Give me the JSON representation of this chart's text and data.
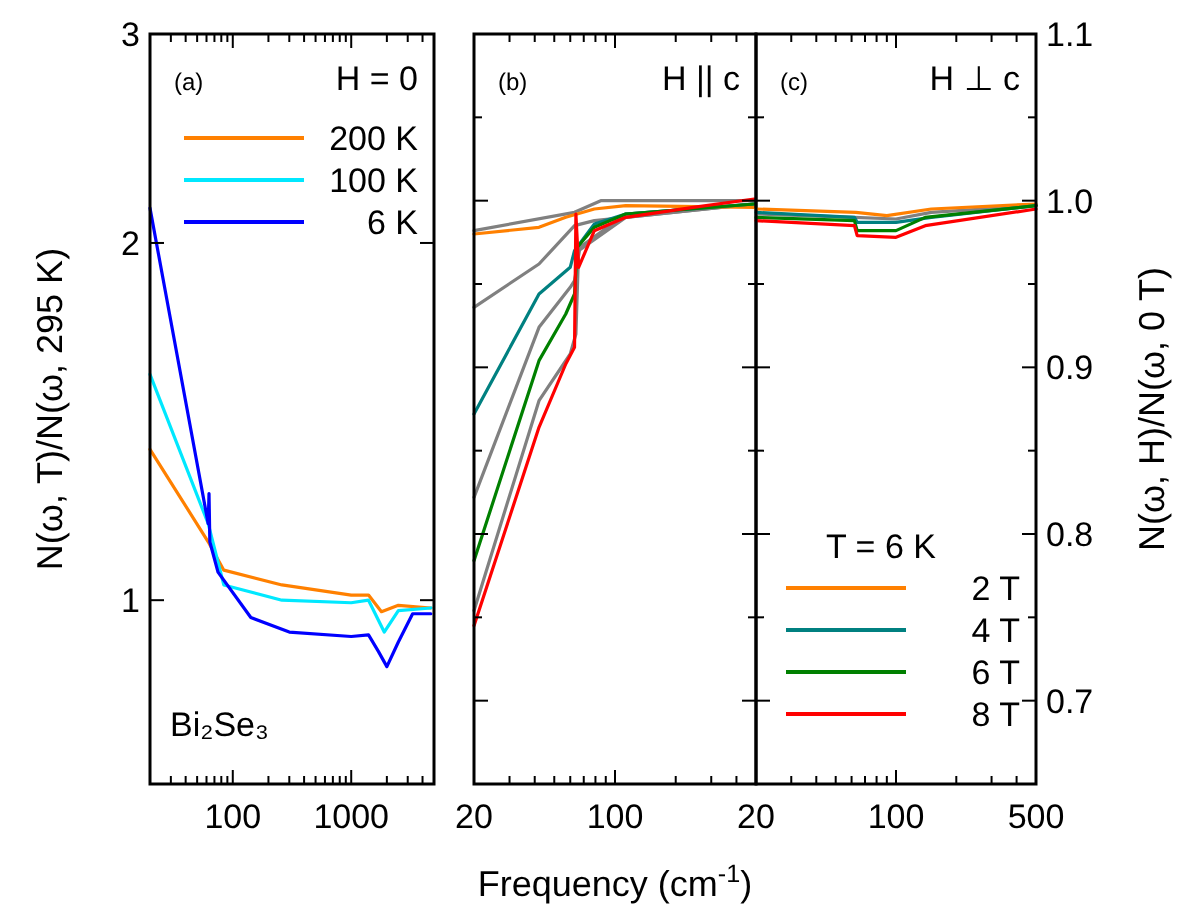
{
  "chart_data": [
    {
      "type": "line",
      "ylabel": "N(ω, T)/N(ω, 295 K)",
      "log": "xy",
      "xlim": [
        20,
        5000
      ],
      "ylim": [
        0.7,
        3
      ],
      "yticks": [
        1,
        2,
        3
      ],
      "xticks": [
        {
          "value": 30,
          "label": null
        },
        {
          "value": 40,
          "label": null
        },
        {
          "value": 50,
          "label": null
        },
        {
          "value": 60,
          "label": null
        },
        {
          "value": 70,
          "label": null
        },
        {
          "value": 80,
          "label": null
        },
        {
          "value": 90,
          "label": null
        },
        100,
        {
          "value": 200,
          "label": null
        },
        {
          "value": 300,
          "label": null
        },
        {
          "value": 400,
          "label": null
        },
        {
          "value": 500,
          "label": null
        },
        {
          "value": 600,
          "label": null
        },
        {
          "value": 700,
          "label": null
        },
        {
          "value": 800,
          "label": null
        },
        {
          "value": 900,
          "label": null
        },
        1000,
        {
          "value": 2000,
          "label": null
        },
        {
          "value": 3000,
          "label": null
        },
        {
          "value": 4000,
          "label": null
        }
      ],
      "annotations": [
        "(a)",
        "H = 0",
        "Bi₂Se₃"
      ],
      "legend": "top right",
      "series": [
        {
          "name": "200 K",
          "color": "#ff8000",
          "x": [
            20,
            62,
            84,
            260,
            1000,
            1400,
            1800,
            2500,
            4700
          ],
          "values": [
            1.34,
            1.12,
            1.06,
            1.03,
            1.01,
            1.01,
            0.978,
            0.99,
            0.985
          ]
        },
        {
          "name": "100 K",
          "color": "#00e8ff",
          "x": [
            20,
            62,
            84,
            260,
            1000,
            1400,
            1900,
            2500,
            4700
          ],
          "values": [
            1.55,
            1.16,
            1.03,
            1.0,
            0.995,
            1.0,
            0.94,
            0.98,
            0.985
          ]
        },
        {
          "name": "6 K",
          "color": "#0000ff",
          "x": [
            20,
            62,
            63,
            64,
            75,
            142,
            300,
            1000,
            1400,
            1700,
            2000,
            2500,
            3300,
            4700
          ],
          "values": [
            2.14,
            1.16,
            1.23,
            1.12,
            1.056,
            0.967,
            0.94,
            0.932,
            0.935,
            0.905,
            0.879,
            0.922,
            0.974,
            0.974
          ]
        }
      ]
    },
    {
      "type": "line",
      "xlabel": "Frequency (cm$^{-1}$)",
      "log": "x",
      "xlim": [
        20,
        500
      ],
      "ylim": [
        0.65,
        1.1
      ],
      "tick_labels": "x",
      "yticks": [
        0.7,
        0.8,
        0.9,
        1.0,
        1.1,
        {
          "value": 0.75,
          "label": null
        },
        {
          "value": 0.85,
          "label": null
        },
        {
          "value": 0.95,
          "label": null
        },
        {
          "value": 1.05,
          "label": null
        }
      ],
      "xticks": [
        20,
        {
          "value": 30,
          "label": null
        },
        {
          "value": 40,
          "label": null
        },
        {
          "value": 50,
          "label": null
        },
        {
          "value": 60,
          "label": null
        },
        {
          "value": 70,
          "label": null
        },
        {
          "value": 80,
          "label": null
        },
        {
          "value": 90,
          "label": null
        },
        100,
        {
          "value": 200,
          "label": null
        },
        {
          "value": 300,
          "label": null
        },
        {
          "value": 400,
          "label": null
        }
      ],
      "annotations": [
        "(b)",
        "H || c"
      ],
      "series": [
        {
          "color": "#808080",
          "x": [
            20,
            63,
            85,
            490
          ],
          "values": [
            0.982,
            0.993,
            1.0,
            1.0
          ]
        },
        {
          "color": "#808080",
          "x": [
            20,
            42,
            63,
            79,
            490
          ],
          "values": [
            0.936,
            0.962,
            0.985,
            0.988,
            0.998
          ]
        },
        {
          "color": "#808080",
          "x": [
            20,
            42,
            60,
            63,
            67,
            113,
            490
          ],
          "values": [
            0.822,
            0.924,
            0.948,
            0.952,
            0.972,
            0.992,
            0.998
          ]
        },
        {
          "color": "#808080",
          "x": [
            20,
            42,
            60,
            64,
            66,
            113,
            490
          ],
          "values": [
            0.754,
            0.88,
            0.908,
            0.92,
            0.97,
            0.99,
            0.998
          ]
        },
        {
          "color": "#ff8000",
          "x": [
            20,
            42,
            57,
            79,
            113,
            490
          ],
          "values": [
            0.98,
            0.984,
            0.99,
            0.995,
            0.997,
            0.996
          ]
        },
        {
          "color": "#008080",
          "x": [
            20,
            42,
            60,
            63,
            79,
            113,
            490
          ],
          "values": [
            0.872,
            0.944,
            0.96,
            0.97,
            0.986,
            0.992,
            0.998
          ]
        },
        {
          "color": "#008000",
          "x": [
            20,
            42,
            57,
            63,
            65,
            79,
            113,
            490
          ],
          "values": [
            0.784,
            0.904,
            0.932,
            0.944,
            0.972,
            0.984,
            0.992,
            0.998
          ]
        },
        {
          "color": "#ff0000",
          "x": [
            20,
            42,
            57,
            63,
            64,
            66,
            79,
            113,
            244,
            490
          ],
          "values": [
            0.745,
            0.864,
            0.902,
            0.912,
            0.992,
            0.96,
            0.982,
            0.99,
            0.996,
            1.001
          ]
        }
      ]
    },
    {
      "type": "line",
      "y2label": "N(ω, H)/N(ω, 0 T)",
      "log": "x",
      "xlim": [
        20,
        500
      ],
      "y2lim": [
        0.65,
        1.1
      ],
      "y2ticks": [
        0.7,
        0.8,
        0.9,
        "1.0",
        1.1,
        {
          "value": 0.75,
          "label": null
        },
        {
          "value": 0.85,
          "label": null
        },
        {
          "value": 0.95,
          "label": null
        },
        {
          "value": 1.05,
          "label": null
        }
      ],
      "xticks": [
        20,
        {
          "value": 30,
          "label": null
        },
        {
          "value": 40,
          "label": null
        },
        {
          "value": 50,
          "label": null
        },
        {
          "value": 60,
          "label": null
        },
        {
          "value": 70,
          "label": null
        },
        {
          "value": 80,
          "label": null
        },
        {
          "value": 90,
          "label": null
        },
        100,
        {
          "value": 200,
          "label": null
        },
        {
          "value": 300,
          "label": null
        },
        {
          "value": 400,
          "label": null
        },
        500
      ],
      "annotations": [
        "(c)",
        "H ⊥ c"
      ],
      "legend": "bottom right",
      "legend_title": "T = 6 K",
      "series": [
        {
          "color": "#808080",
          "axis": "y2",
          "x": [
            20,
            62,
            100,
            150,
            500
          ],
          "values": [
            0.992,
            0.99,
            0.989,
            0.993,
            0.997
          ]
        },
        {
          "name": "2 T",
          "color": "#ff8000",
          "axis": "y2",
          "x": [
            20,
            63,
            90,
            150,
            500
          ],
          "values": [
            0.995,
            0.993,
            0.991,
            0.995,
            0.998
          ]
        },
        {
          "name": "4 T",
          "color": "#008080",
          "axis": "y2",
          "x": [
            20,
            62,
            64,
            100,
            150,
            500
          ],
          "values": [
            0.993,
            0.99,
            0.987,
            0.987,
            0.99,
            0.997
          ]
        },
        {
          "name": "6 T",
          "color": "#008000",
          "axis": "y2",
          "x": [
            20,
            62,
            64,
            100,
            140,
            500
          ],
          "values": [
            0.99,
            0.988,
            0.982,
            0.982,
            0.99,
            0.997
          ]
        },
        {
          "name": "8 T",
          "color": "#ff0000",
          "axis": "y2",
          "x": [
            20,
            62,
            64,
            100,
            140,
            500
          ],
          "values": [
            0.988,
            0.985,
            0.979,
            0.978,
            0.985,
            0.995
          ]
        }
      ]
    }
  ]
}
